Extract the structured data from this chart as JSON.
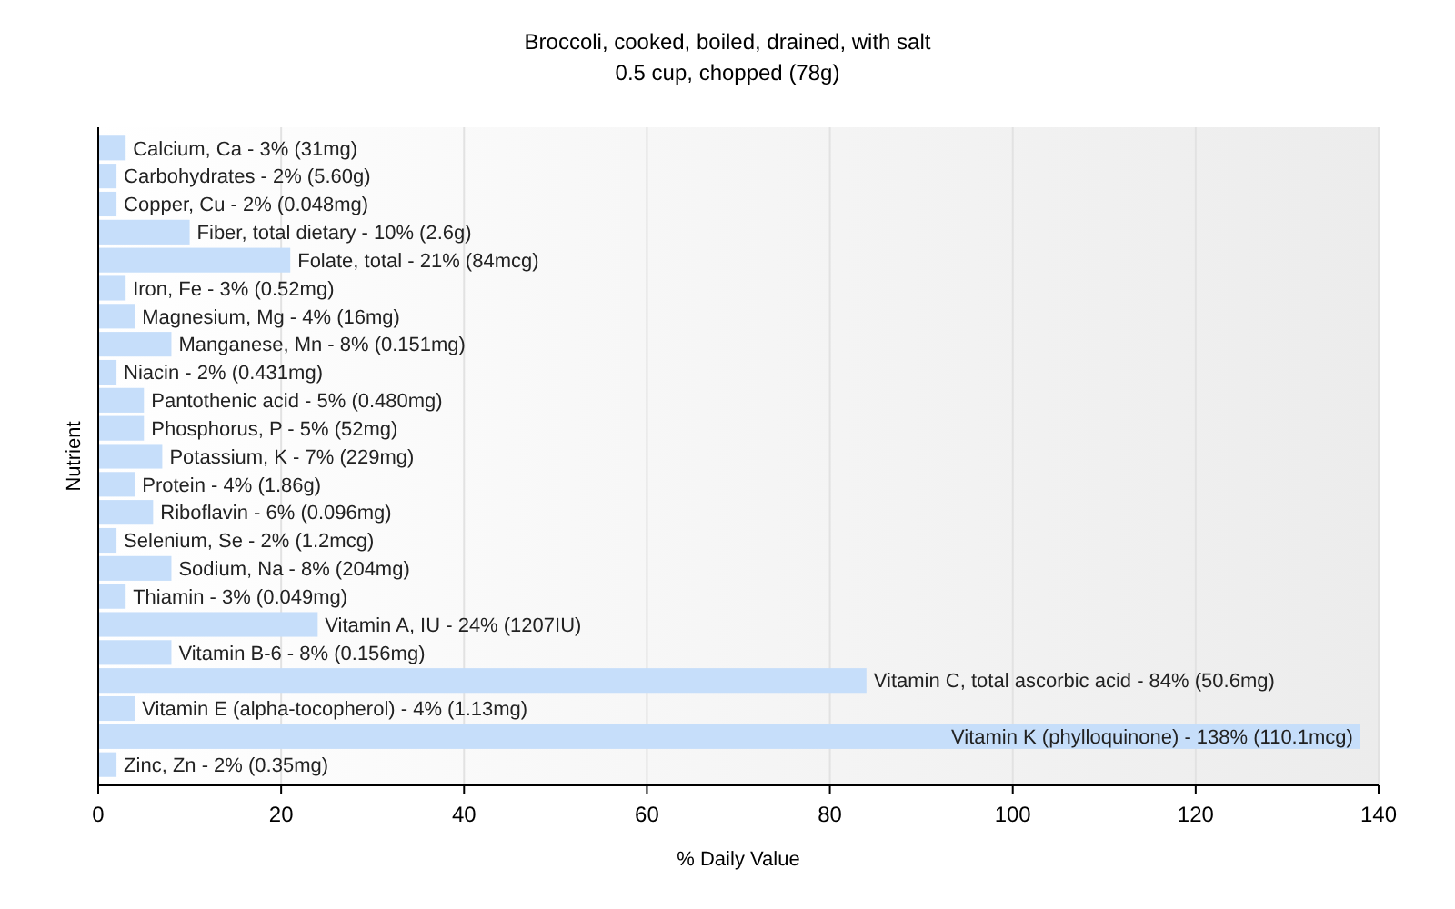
{
  "chart_data": {
    "type": "bar",
    "orientation": "horizontal",
    "title": "Broccoli, cooked, boiled, drained, with salt",
    "subtitle": "0.5 cup, chopped (78g)",
    "xlabel": "% Daily Value",
    "ylabel": "Nutrient",
    "categories": [
      "Calcium, Ca - 3% (31mg)",
      "Carbohydrates - 2% (5.60g)",
      "Copper, Cu - 2% (0.048mg)",
      "Fiber, total dietary - 10% (2.6g)",
      "Folate, total - 21% (84mcg)",
      "Iron, Fe - 3% (0.52mg)",
      "Magnesium, Mg - 4% (16mg)",
      "Manganese, Mn - 8% (0.151mg)",
      "Niacin - 2% (0.431mg)",
      "Pantothenic acid - 5% (0.480mg)",
      "Phosphorus, P - 5% (52mg)",
      "Potassium, K - 7% (229mg)",
      "Protein - 4% (1.86g)",
      "Riboflavin - 6% (0.096mg)",
      "Selenium, Se - 2% (1.2mcg)",
      "Sodium, Na - 8% (204mg)",
      "Thiamin - 3% (0.049mg)",
      "Vitamin A, IU - 24% (1207IU)",
      "Vitamin B-6 - 8% (0.156mg)",
      "Vitamin C, total ascorbic acid - 84% (50.6mg)",
      "Vitamin E (alpha-tocopherol) - 4% (1.13mg)",
      "Vitamin K (phylloquinone) - 138% (110.1mcg)",
      "Zinc, Zn - 2% (0.35mg)"
    ],
    "values": [
      3,
      2,
      2,
      10,
      21,
      3,
      4,
      8,
      2,
      5,
      5,
      7,
      4,
      6,
      2,
      8,
      3,
      24,
      8,
      84,
      4,
      138,
      2
    ],
    "color": "#c6defa",
    "xlim": [
      0,
      140
    ],
    "xticks": [
      0,
      20,
      40,
      60,
      80,
      100,
      120,
      140
    ],
    "grid": "x"
  }
}
